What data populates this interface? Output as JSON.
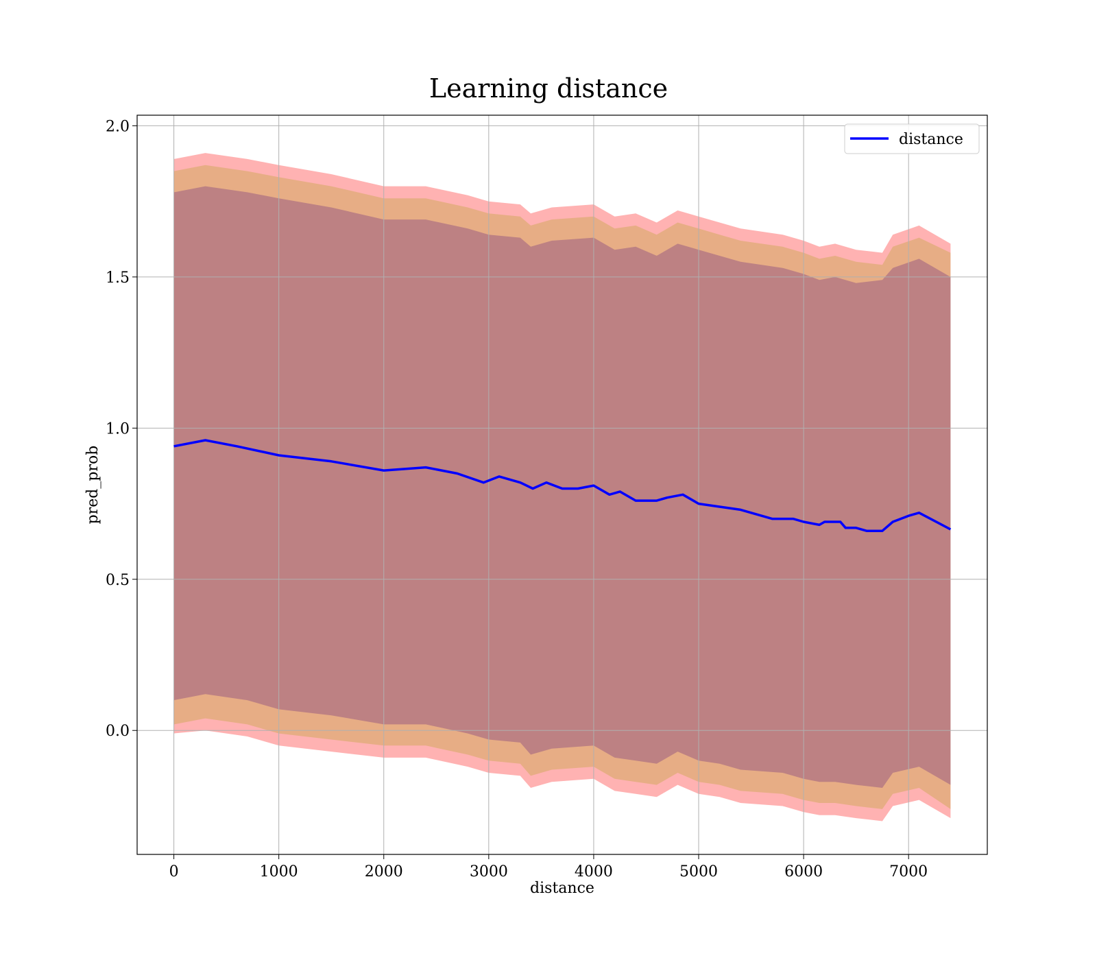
{
  "chart_data": {
    "type": "line",
    "title": "Learning distance",
    "xlabel": "distance",
    "ylabel": "pred_prob",
    "xlim": [
      -350,
      7750
    ],
    "ylim": [
      -0.41,
      2.035
    ],
    "xticks": [
      0,
      1000,
      2000,
      3000,
      4000,
      5000,
      6000,
      7000
    ],
    "xtick_labels": [
      "0",
      "1000",
      "2000",
      "3000",
      "4000",
      "5000",
      "6000",
      "7000"
    ],
    "yticks": [
      0.0,
      0.5,
      1.0,
      1.5,
      2.0
    ],
    "ytick_labels": [
      "0.0",
      "0.5",
      "1.0",
      "1.5",
      "2.0"
    ],
    "grid": true,
    "legend_position": "top-right",
    "series": [
      {
        "name": "distance",
        "color": "#0000ff",
        "x": [
          0,
          300,
          600,
          1000,
          1500,
          2000,
          2400,
          2700,
          2950,
          3100,
          3300,
          3420,
          3550,
          3700,
          3850,
          4000,
          4150,
          4250,
          4400,
          4600,
          4700,
          4850,
          5000,
          5200,
          5400,
          5600,
          5700,
          5900,
          6000,
          6150,
          6200,
          6350,
          6400,
          6500,
          6600,
          6750,
          6850,
          7000,
          7100,
          7400
        ],
        "y": [
          0.94,
          0.96,
          0.94,
          0.91,
          0.89,
          0.86,
          0.87,
          0.85,
          0.82,
          0.84,
          0.82,
          0.8,
          0.82,
          0.8,
          0.8,
          0.81,
          0.78,
          0.79,
          0.76,
          0.76,
          0.77,
          0.78,
          0.75,
          0.74,
          0.73,
          0.71,
          0.7,
          0.7,
          0.69,
          0.68,
          0.69,
          0.69,
          0.67,
          0.67,
          0.66,
          0.66,
          0.69,
          0.71,
          0.72,
          0.665
        ]
      }
    ],
    "bands": [
      {
        "color": "#ff0000",
        "opacity": 0.3,
        "x": [
          0,
          300,
          700,
          1000,
          1500,
          2000,
          2400,
          2800,
          3000,
          3300,
          3400,
          3600,
          4000,
          4200,
          4400,
          4600,
          4800,
          5000,
          5200,
          5400,
          5800,
          6000,
          6150,
          6300,
          6500,
          6750,
          6850,
          7100,
          7400
        ],
        "upper": [
          1.89,
          1.91,
          1.89,
          1.87,
          1.84,
          1.8,
          1.8,
          1.77,
          1.75,
          1.74,
          1.71,
          1.73,
          1.74,
          1.7,
          1.71,
          1.68,
          1.72,
          1.7,
          1.68,
          1.66,
          1.64,
          1.62,
          1.6,
          1.61,
          1.59,
          1.58,
          1.64,
          1.67,
          1.61
        ],
        "lower": [
          -0.01,
          0.0,
          -0.02,
          -0.05,
          -0.07,
          -0.09,
          -0.09,
          -0.12,
          -0.14,
          -0.15,
          -0.19,
          -0.17,
          -0.16,
          -0.2,
          -0.21,
          -0.22,
          -0.18,
          -0.21,
          -0.22,
          -0.24,
          -0.25,
          -0.27,
          -0.28,
          -0.28,
          -0.29,
          -0.3,
          -0.25,
          -0.23,
          -0.29
        ]
      },
      {
        "color": "#a0a000",
        "opacity": 0.25,
        "x": [
          0,
          300,
          700,
          1000,
          1500,
          2000,
          2400,
          2800,
          3000,
          3300,
          3400,
          3600,
          4000,
          4200,
          4400,
          4600,
          4800,
          5000,
          5200,
          5400,
          5800,
          6000,
          6150,
          6300,
          6500,
          6750,
          6850,
          7100,
          7400
        ],
        "upper": [
          1.85,
          1.87,
          1.85,
          1.83,
          1.8,
          1.76,
          1.76,
          1.73,
          1.71,
          1.7,
          1.67,
          1.69,
          1.7,
          1.66,
          1.67,
          1.64,
          1.68,
          1.66,
          1.64,
          1.62,
          1.6,
          1.58,
          1.56,
          1.57,
          1.55,
          1.54,
          1.6,
          1.63,
          1.58
        ],
        "lower": [
          0.02,
          0.04,
          0.02,
          -0.01,
          -0.03,
          -0.05,
          -0.05,
          -0.08,
          -0.1,
          -0.11,
          -0.15,
          -0.13,
          -0.12,
          -0.16,
          -0.17,
          -0.18,
          -0.14,
          -0.17,
          -0.18,
          -0.2,
          -0.21,
          -0.23,
          -0.24,
          -0.24,
          -0.25,
          -0.26,
          -0.21,
          -0.19,
          -0.26
        ]
      },
      {
        "color": "#400080",
        "opacity": 0.25,
        "x": [
          0,
          300,
          700,
          1000,
          1500,
          2000,
          2400,
          2800,
          3000,
          3300,
          3400,
          3600,
          4000,
          4200,
          4400,
          4600,
          4800,
          5000,
          5200,
          5400,
          5800,
          6000,
          6150,
          6300,
          6500,
          6750,
          6850,
          7100,
          7400
        ],
        "upper": [
          1.78,
          1.8,
          1.78,
          1.76,
          1.73,
          1.69,
          1.69,
          1.66,
          1.64,
          1.63,
          1.6,
          1.62,
          1.63,
          1.59,
          1.6,
          1.57,
          1.61,
          1.59,
          1.57,
          1.55,
          1.53,
          1.51,
          1.49,
          1.5,
          1.48,
          1.49,
          1.53,
          1.56,
          1.5
        ],
        "lower": [
          0.1,
          0.12,
          0.1,
          0.07,
          0.05,
          0.02,
          0.02,
          -0.01,
          -0.03,
          -0.04,
          -0.08,
          -0.06,
          -0.05,
          -0.09,
          -0.1,
          -0.11,
          -0.07,
          -0.1,
          -0.11,
          -0.13,
          -0.14,
          -0.16,
          -0.17,
          -0.17,
          -0.18,
          -0.19,
          -0.14,
          -0.12,
          -0.18
        ]
      }
    ]
  }
}
